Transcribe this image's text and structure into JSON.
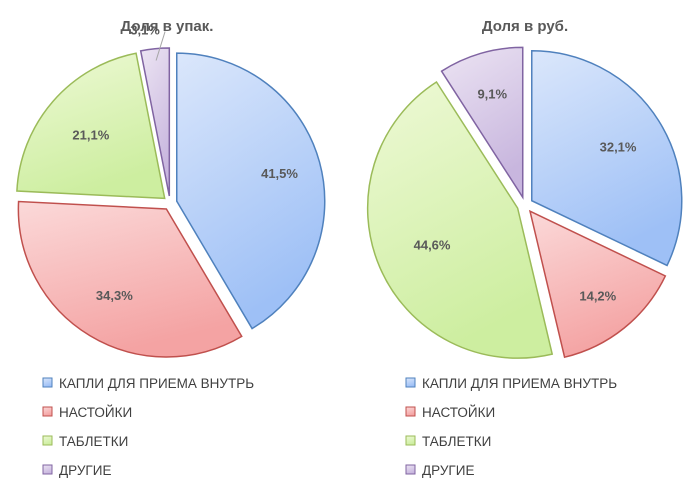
{
  "chart_data": [
    {
      "type": "pie",
      "title": "Доля в упак.",
      "categories": [
        "КАПЛИ ДЛЯ ПРИЕМА ВНУТРЬ",
        "НАСТОЙКИ",
        "ТАБЛЕТКИ",
        "ДРУГИЕ"
      ],
      "values": [
        41.5,
        34.3,
        21.1,
        3.1
      ],
      "labels": [
        "41,5%",
        "34,3%",
        "21,1%",
        "3,1%"
      ],
      "legend_position": "bottom",
      "exploded": true
    },
    {
      "type": "pie",
      "title": "Доля в руб.",
      "categories": [
        "КАПЛИ ДЛЯ ПРИЕМА ВНУТРЬ",
        "НАСТОЙКИ",
        "ТАБЛЕТКИ",
        "ДРУГИЕ"
      ],
      "values": [
        32.1,
        14.2,
        44.6,
        9.1
      ],
      "labels": [
        "32,1%",
        "14,2%",
        "44,6%",
        "9,1%"
      ],
      "legend_position": "bottom",
      "exploded": true
    }
  ],
  "colors": {
    "series_fill_light": [
      "#dbe7fb",
      "#fbd9d9",
      "#eef9d6",
      "#ece4f3"
    ],
    "series_fill_dark": [
      "#9ec0f6",
      "#f4a3a3",
      "#cdeea0",
      "#c8b6de"
    ],
    "series_stroke": [
      "#4f81bd",
      "#c0504d",
      "#9bbb59",
      "#8064a2"
    ],
    "text": "#595959",
    "leader_line": "#a6a6a6"
  }
}
